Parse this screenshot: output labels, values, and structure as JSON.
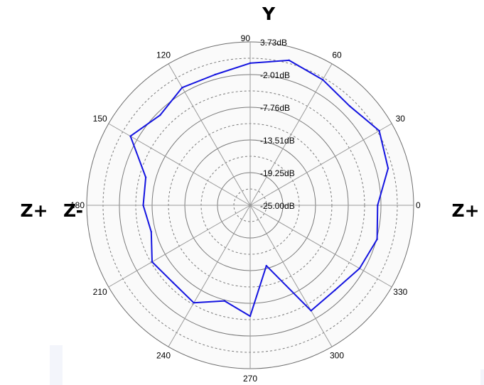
{
  "chart_data": {
    "type": "line",
    "subtype": "polar",
    "title": "",
    "labels": {
      "top": "Y",
      "right": "Z+",
      "left_outer": "Z+",
      "left_inner": "Z-"
    },
    "radial_unit": "dB",
    "radial_range": [
      -25.0,
      3.73
    ],
    "radial_tick_labels": [
      "3.73dB",
      "-2.01dB",
      "-7.76dB",
      "-13.51dB",
      "-19.25dB",
      "-25.00dB"
    ],
    "radial_ticks": [
      3.73,
      -2.01,
      -7.76,
      -13.51,
      -19.25,
      -25.0
    ],
    "dashed_ring_levels": [
      0.86,
      -4.89,
      -10.64,
      -16.38,
      -22.13
    ],
    "angle_tick_labels": [
      "0",
      "30",
      "60",
      "90",
      "120",
      "150",
      "180",
      "210",
      "240",
      "270",
      "300",
      "330"
    ],
    "angle_ticks": [
      0,
      30,
      60,
      90,
      120,
      150,
      180,
      210,
      240,
      270,
      300,
      330
    ],
    "grid": true,
    "series": [
      {
        "color": "#1414e0",
        "theta": [
          0,
          15,
          30,
          45,
          60,
          75,
          90,
          105,
          120,
          135,
          150,
          165,
          180,
          195,
          210,
          225,
          240,
          255,
          270,
          285,
          300,
          315,
          330,
          345,
          360
        ],
        "r": [
          -2.6,
          0.1,
          1.2,
          -0.3,
          0.5,
          1.4,
          0.0,
          -1.2,
          -1.1,
          -2.6,
          -0.7,
          -6.0,
          -6.2,
          -7.0,
          -5.1,
          -5.8,
          -5.2,
          -7.6,
          -5.5,
          -14.0,
          -3.6,
          -3.9,
          -2.8,
          -1.9,
          -2.6
        ]
      }
    ]
  }
}
